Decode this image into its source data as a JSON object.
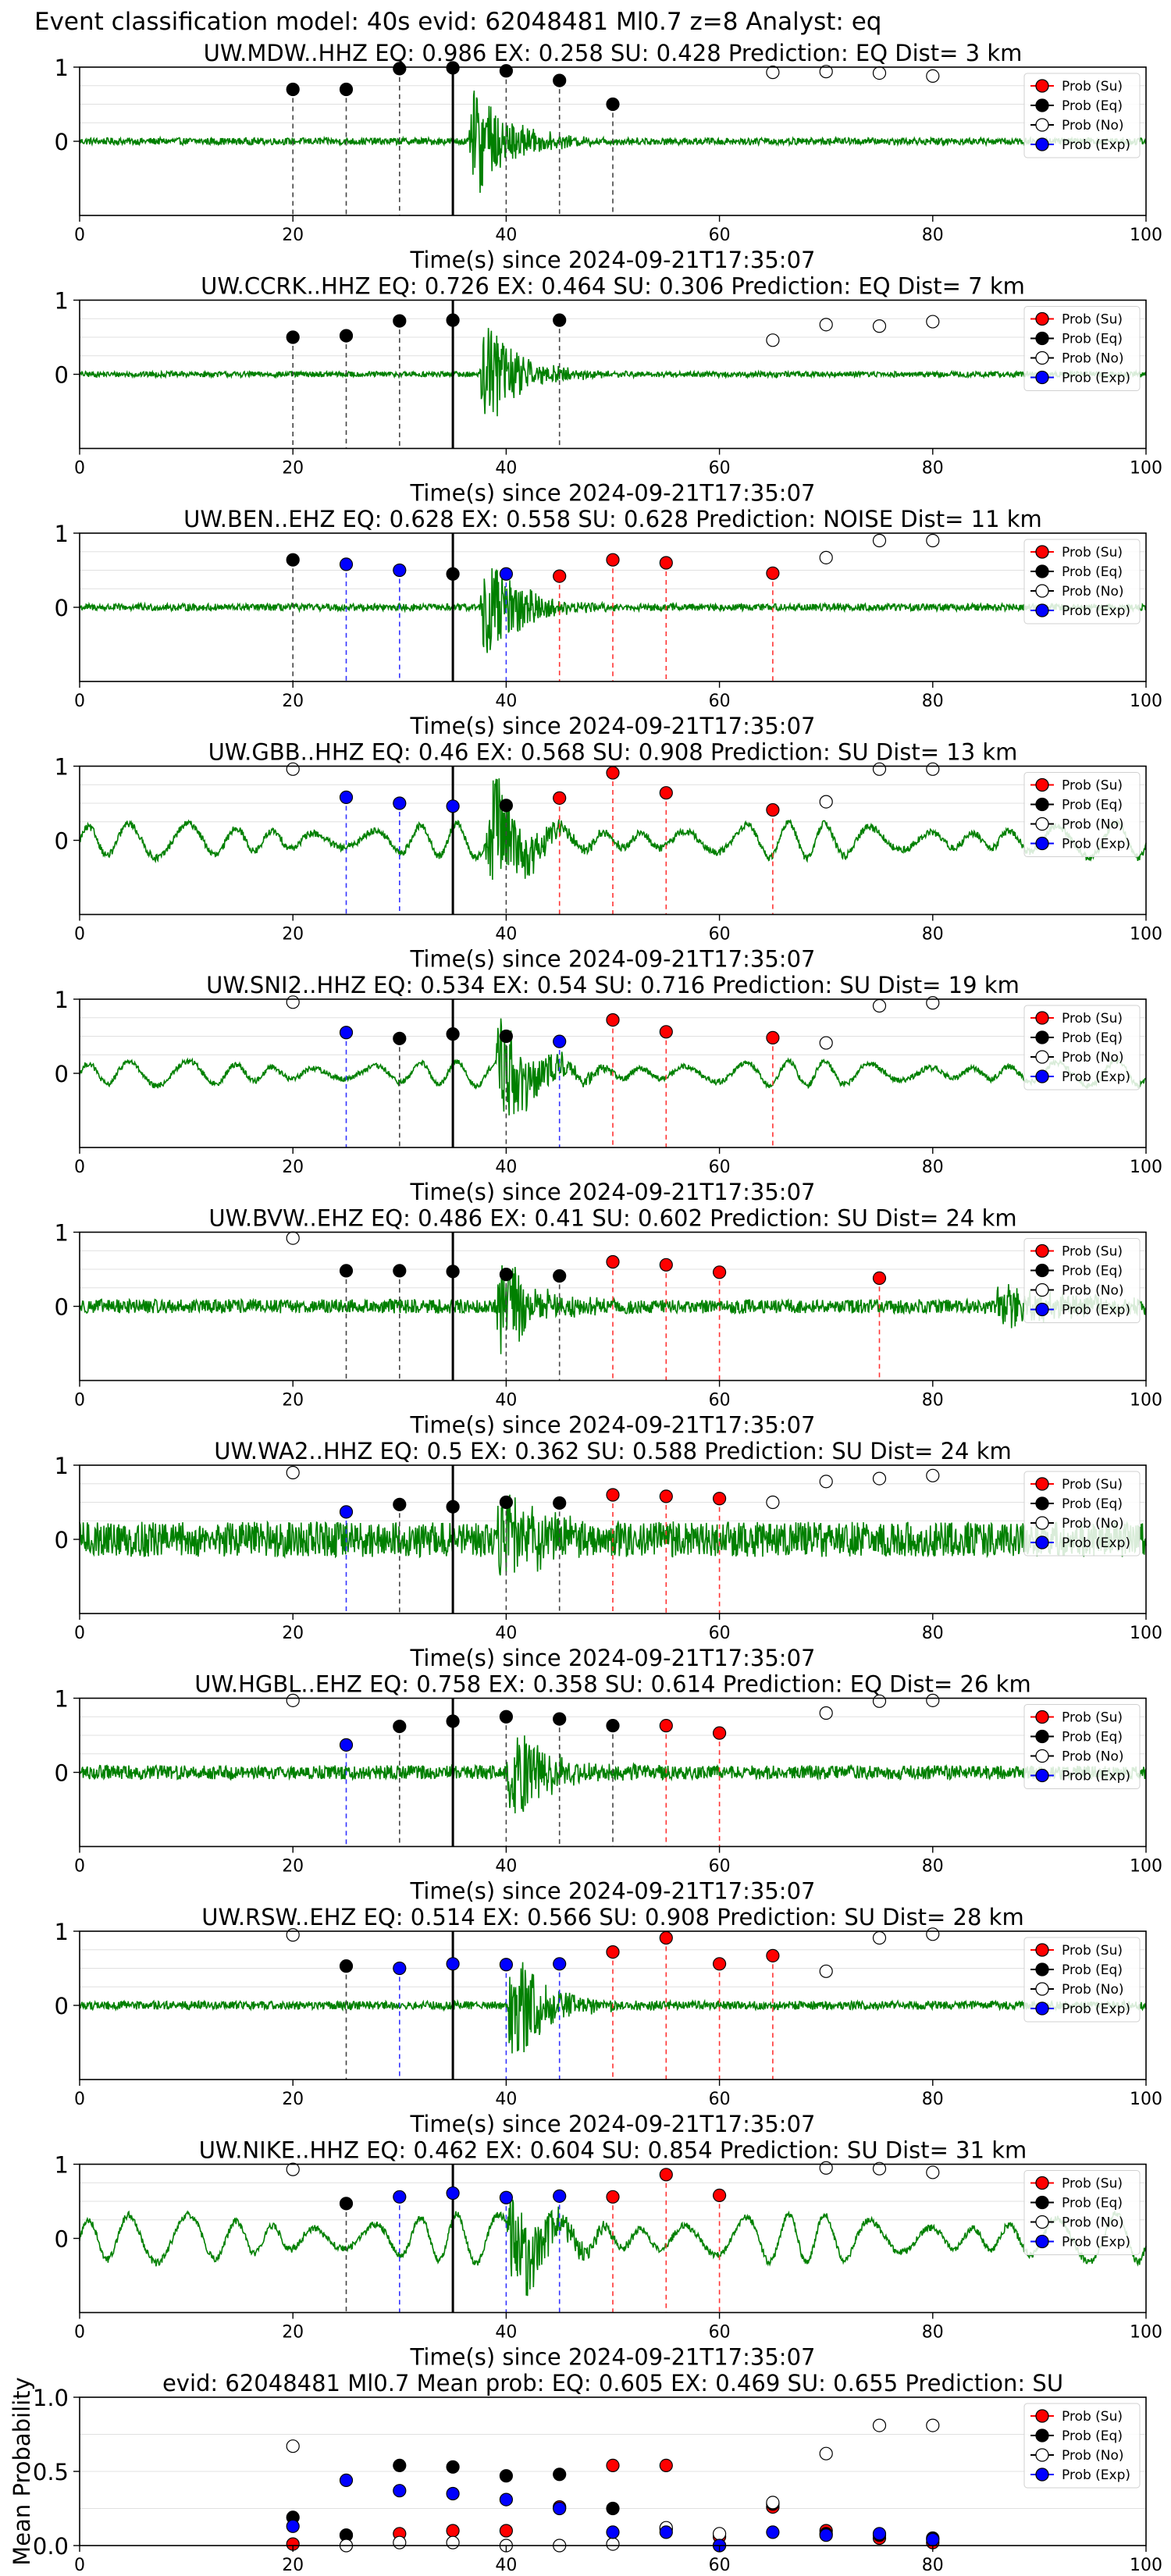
{
  "suptitle": "Event classification model: 40s evid: 62048481 Ml0.7 z=8 Analyst: eq",
  "legend_labels": [
    "Prob (Su)",
    "Prob (Eq)",
    "Prob (No)",
    "Prob (Exp)"
  ],
  "colors": {
    "su": "#ff0000",
    "eq": "#000000",
    "no": "#ffffff",
    "exp": "#0000ff",
    "trace": "#008000",
    "grid": "#cccccc"
  },
  "chart_data": [
    {
      "type": "line",
      "title": "UW.MDW..HHZ   EQ: 0.986  EX: 0.258  SU: 0.428   Prediction: EQ    Dist= 3 km",
      "xlabel": "Time(s) since 2024-09-21T17:35:07",
      "xlim": [
        0,
        100
      ],
      "ylim": [
        -1,
        1
      ],
      "xticks": [
        "0",
        "20",
        "40",
        "60",
        "80",
        "100"
      ],
      "yticks": [
        "1",
        "0"
      ],
      "p_arrival": 35,
      "trace": {
        "onset": 36.5,
        "peak_amp": 1.0,
        "noise": 0.05,
        "osc": 0,
        "coda": 0
      },
      "points": [
        {
          "x": 20,
          "y": 0.7,
          "class": "eq"
        },
        {
          "x": 25,
          "y": 0.7,
          "class": "eq"
        },
        {
          "x": 30,
          "y": 0.98,
          "class": "eq"
        },
        {
          "x": 35,
          "y": 0.99,
          "class": "eq"
        },
        {
          "x": 40,
          "y": 0.95,
          "class": "eq"
        },
        {
          "x": 45,
          "y": 0.82,
          "class": "eq"
        },
        {
          "x": 50,
          "y": 0.5,
          "class": "eq"
        },
        {
          "x": 65,
          "y": 0.93,
          "class": "no"
        },
        {
          "x": 70,
          "y": 0.94,
          "class": "no"
        },
        {
          "x": 75,
          "y": 0.92,
          "class": "no"
        },
        {
          "x": 80,
          "y": 0.88,
          "class": "no"
        }
      ]
    },
    {
      "type": "line",
      "title": "UW.CCRK..HHZ   EQ: 0.726  EX: 0.464  SU: 0.306   Prediction: EQ    Dist= 7 km",
      "xlabel": "Time(s) since 2024-09-21T17:35:07",
      "xlim": [
        0,
        100
      ],
      "ylim": [
        -1,
        1
      ],
      "xticks": [
        "0",
        "20",
        "40",
        "60",
        "80",
        "100"
      ],
      "yticks": [
        "1",
        "0"
      ],
      "p_arrival": 35,
      "trace": {
        "onset": 37.5,
        "peak_amp": 0.95,
        "noise": 0.04,
        "osc": 0,
        "coda": 0
      },
      "points": [
        {
          "x": 20,
          "y": 0.5,
          "class": "eq"
        },
        {
          "x": 25,
          "y": 0.52,
          "class": "eq"
        },
        {
          "x": 30,
          "y": 0.72,
          "class": "eq"
        },
        {
          "x": 35,
          "y": 0.73,
          "class": "eq"
        },
        {
          "x": 45,
          "y": 0.73,
          "class": "eq"
        },
        {
          "x": 65,
          "y": 0.46,
          "class": "no"
        },
        {
          "x": 70,
          "y": 0.67,
          "class": "no"
        },
        {
          "x": 75,
          "y": 0.65,
          "class": "no"
        },
        {
          "x": 80,
          "y": 0.71,
          "class": "no"
        }
      ]
    },
    {
      "type": "line",
      "title": "UW.BEN..EHZ   EQ: 0.628  EX: 0.558  SU: 0.628   Prediction: NOISE    Dist= 11 km",
      "xlabel": "Time(s) since 2024-09-21T17:35:07",
      "xlim": [
        0,
        100
      ],
      "ylim": [
        -1,
        1
      ],
      "xticks": [
        "0",
        "20",
        "40",
        "60",
        "80",
        "100"
      ],
      "yticks": [
        "1",
        "0"
      ],
      "p_arrival": 35,
      "trace": {
        "onset": 37.5,
        "peak_amp": 0.95,
        "noise": 0.05,
        "osc": 0,
        "coda": 0
      },
      "points": [
        {
          "x": 20,
          "y": 0.64,
          "class": "eq"
        },
        {
          "x": 35,
          "y": 0.45,
          "class": "eq"
        },
        {
          "x": 25,
          "y": 0.58,
          "class": "exp"
        },
        {
          "x": 30,
          "y": 0.5,
          "class": "exp"
        },
        {
          "x": 40,
          "y": 0.45,
          "class": "exp"
        },
        {
          "x": 45,
          "y": 0.42,
          "class": "su"
        },
        {
          "x": 50,
          "y": 0.64,
          "class": "su"
        },
        {
          "x": 55,
          "y": 0.6,
          "class": "su"
        },
        {
          "x": 65,
          "y": 0.46,
          "class": "su"
        },
        {
          "x": 70,
          "y": 0.67,
          "class": "no"
        },
        {
          "x": 75,
          "y": 0.9,
          "class": "no"
        },
        {
          "x": 80,
          "y": 0.9,
          "class": "no"
        }
      ]
    },
    {
      "type": "line",
      "title": "UW.GBB..HHZ   EQ: 0.46  EX: 0.568  SU: 0.908   Prediction: SU    Dist= 13 km",
      "xlabel": "Time(s) since 2024-09-21T17:35:07",
      "xlim": [
        0,
        100
      ],
      "ylim": [
        -1,
        1
      ],
      "xticks": [
        "0",
        "20",
        "40",
        "60",
        "80",
        "100"
      ],
      "yticks": [
        "1",
        "0"
      ],
      "p_arrival": 35,
      "trace": {
        "onset": 38,
        "peak_amp": 1.0,
        "noise": 0.05,
        "osc": 0.25,
        "coda": 0
      },
      "points": [
        {
          "x": 20,
          "y": 0.96,
          "class": "no"
        },
        {
          "x": 25,
          "y": 0.58,
          "class": "exp"
        },
        {
          "x": 30,
          "y": 0.5,
          "class": "exp"
        },
        {
          "x": 35,
          "y": 0.46,
          "class": "exp"
        },
        {
          "x": 40,
          "y": 0.47,
          "class": "eq"
        },
        {
          "x": 45,
          "y": 0.57,
          "class": "su"
        },
        {
          "x": 50,
          "y": 0.91,
          "class": "su"
        },
        {
          "x": 55,
          "y": 0.64,
          "class": "su"
        },
        {
          "x": 65,
          "y": 0.41,
          "class": "su"
        },
        {
          "x": 70,
          "y": 0.52,
          "class": "no"
        },
        {
          "x": 75,
          "y": 0.96,
          "class": "no"
        },
        {
          "x": 80,
          "y": 0.96,
          "class": "no"
        }
      ]
    },
    {
      "type": "line",
      "title": "UW.SNI2..HHZ   EQ: 0.534  EX: 0.54  SU: 0.716   Prediction: SU    Dist= 19 km",
      "xlabel": "Time(s) since 2024-09-21T17:35:07",
      "xlim": [
        0,
        100
      ],
      "ylim": [
        -1,
        1
      ],
      "xticks": [
        "0",
        "20",
        "40",
        "60",
        "80",
        "100"
      ],
      "yticks": [
        "1",
        "0"
      ],
      "p_arrival": 35,
      "trace": {
        "onset": 39,
        "peak_amp": 1.0,
        "noise": 0.04,
        "osc": 0.18,
        "coda": 0
      },
      "points": [
        {
          "x": 20,
          "y": 0.96,
          "class": "no"
        },
        {
          "x": 25,
          "y": 0.55,
          "class": "exp"
        },
        {
          "x": 30,
          "y": 0.47,
          "class": "eq"
        },
        {
          "x": 35,
          "y": 0.53,
          "class": "eq"
        },
        {
          "x": 40,
          "y": 0.5,
          "class": "eq"
        },
        {
          "x": 45,
          "y": 0.43,
          "class": "exp"
        },
        {
          "x": 50,
          "y": 0.72,
          "class": "su"
        },
        {
          "x": 55,
          "y": 0.56,
          "class": "su"
        },
        {
          "x": 65,
          "y": 0.48,
          "class": "su"
        },
        {
          "x": 70,
          "y": 0.41,
          "class": "no"
        },
        {
          "x": 75,
          "y": 0.91,
          "class": "no"
        },
        {
          "x": 80,
          "y": 0.95,
          "class": "no"
        }
      ]
    },
    {
      "type": "line",
      "title": "UW.BVW..EHZ   EQ: 0.486  EX: 0.41  SU: 0.602   Prediction: SU    Dist= 24 km",
      "xlabel": "Time(s) since 2024-09-21T17:35:07",
      "xlim": [
        0,
        100
      ],
      "ylim": [
        -1,
        1
      ],
      "xticks": [
        "0",
        "20",
        "40",
        "60",
        "80",
        "100"
      ],
      "yticks": [
        "1",
        "0"
      ],
      "p_arrival": 35,
      "trace": {
        "onset": 39,
        "peak_amp": 0.9,
        "noise": 0.1,
        "osc": 0,
        "coda": 0.3
      },
      "points": [
        {
          "x": 20,
          "y": 0.92,
          "class": "no"
        },
        {
          "x": 25,
          "y": 0.48,
          "class": "eq"
        },
        {
          "x": 30,
          "y": 0.48,
          "class": "eq"
        },
        {
          "x": 35,
          "y": 0.47,
          "class": "eq"
        },
        {
          "x": 40,
          "y": 0.43,
          "class": "eq"
        },
        {
          "x": 45,
          "y": 0.41,
          "class": "eq"
        },
        {
          "x": 50,
          "y": 0.6,
          "class": "su"
        },
        {
          "x": 55,
          "y": 0.56,
          "class": "su"
        },
        {
          "x": 60,
          "y": 0.46,
          "class": "su"
        },
        {
          "x": 75,
          "y": 0.38,
          "class": "su"
        }
      ]
    },
    {
      "type": "line",
      "title": "UW.WA2..HHZ   EQ: 0.5  EX: 0.362  SU: 0.588   Prediction: SU    Dist= 24 km",
      "xlabel": "Time(s) since 2024-09-21T17:35:07",
      "xlim": [
        0,
        100
      ],
      "ylim": [
        -1,
        1
      ],
      "xticks": [
        "0",
        "20",
        "40",
        "60",
        "80",
        "100"
      ],
      "yticks": [
        "1",
        "0"
      ],
      "p_arrival": 35,
      "trace": {
        "onset": 39,
        "peak_amp": 1.0,
        "noise": 0.25,
        "osc": 0,
        "coda": 0
      },
      "points": [
        {
          "x": 20,
          "y": 0.9,
          "class": "no"
        },
        {
          "x": 25,
          "y": 0.37,
          "class": "exp"
        },
        {
          "x": 30,
          "y": 0.47,
          "class": "eq"
        },
        {
          "x": 35,
          "y": 0.44,
          "class": "eq"
        },
        {
          "x": 40,
          "y": 0.5,
          "class": "eq"
        },
        {
          "x": 45,
          "y": 0.49,
          "class": "eq"
        },
        {
          "x": 50,
          "y": 0.6,
          "class": "su"
        },
        {
          "x": 55,
          "y": 0.58,
          "class": "su"
        },
        {
          "x": 60,
          "y": 0.55,
          "class": "su"
        },
        {
          "x": 65,
          "y": 0.5,
          "class": "no"
        },
        {
          "x": 70,
          "y": 0.78,
          "class": "no"
        },
        {
          "x": 75,
          "y": 0.82,
          "class": "no"
        },
        {
          "x": 80,
          "y": 0.86,
          "class": "no"
        }
      ]
    },
    {
      "type": "line",
      "title": "UW.HGBL..EHZ   EQ: 0.758  EX: 0.358  SU: 0.614   Prediction: EQ    Dist= 26 km",
      "xlabel": "Time(s) since 2024-09-21T17:35:07",
      "xlim": [
        0,
        100
      ],
      "ylim": [
        -1,
        1
      ],
      "xticks": [
        "0",
        "20",
        "40",
        "60",
        "80",
        "100"
      ],
      "yticks": [
        "1",
        "0"
      ],
      "p_arrival": 35,
      "trace": {
        "onset": 40,
        "peak_amp": 0.85,
        "noise": 0.1,
        "osc": 0,
        "coda": 0
      },
      "points": [
        {
          "x": 20,
          "y": 0.97,
          "class": "no"
        },
        {
          "x": 25,
          "y": 0.37,
          "class": "exp"
        },
        {
          "x": 30,
          "y": 0.62,
          "class": "eq"
        },
        {
          "x": 35,
          "y": 0.69,
          "class": "eq"
        },
        {
          "x": 40,
          "y": 0.75,
          "class": "eq"
        },
        {
          "x": 45,
          "y": 0.72,
          "class": "eq"
        },
        {
          "x": 50,
          "y": 0.63,
          "class": "eq"
        },
        {
          "x": 55,
          "y": 0.63,
          "class": "su"
        },
        {
          "x": 60,
          "y": 0.53,
          "class": "su"
        },
        {
          "x": 70,
          "y": 0.8,
          "class": "no"
        },
        {
          "x": 75,
          "y": 0.96,
          "class": "no"
        },
        {
          "x": 80,
          "y": 0.97,
          "class": "no"
        }
      ]
    },
    {
      "type": "line",
      "title": "UW.RSW..EHZ   EQ: 0.514  EX: 0.566  SU: 0.908   Prediction: SU    Dist= 28 km",
      "xlabel": "Time(s) since 2024-09-21T17:35:07",
      "xlim": [
        0,
        100
      ],
      "ylim": [
        -1,
        1
      ],
      "xticks": [
        "0",
        "20",
        "40",
        "60",
        "80",
        "100"
      ],
      "yticks": [
        "1",
        "0"
      ],
      "p_arrival": 35,
      "trace": {
        "onset": 40,
        "peak_amp": 1.0,
        "noise": 0.06,
        "osc": 0,
        "coda": 0
      },
      "points": [
        {
          "x": 20,
          "y": 0.95,
          "class": "no"
        },
        {
          "x": 25,
          "y": 0.53,
          "class": "eq"
        },
        {
          "x": 30,
          "y": 0.5,
          "class": "exp"
        },
        {
          "x": 35,
          "y": 0.56,
          "class": "exp"
        },
        {
          "x": 40,
          "y": 0.55,
          "class": "exp"
        },
        {
          "x": 45,
          "y": 0.56,
          "class": "exp"
        },
        {
          "x": 50,
          "y": 0.72,
          "class": "su"
        },
        {
          "x": 55,
          "y": 0.91,
          "class": "su"
        },
        {
          "x": 60,
          "y": 0.56,
          "class": "su"
        },
        {
          "x": 65,
          "y": 0.67,
          "class": "su"
        },
        {
          "x": 70,
          "y": 0.46,
          "class": "no"
        },
        {
          "x": 75,
          "y": 0.91,
          "class": "no"
        },
        {
          "x": 80,
          "y": 0.96,
          "class": "no"
        }
      ]
    },
    {
      "type": "line",
      "title": "UW.NIKE..HHZ   EQ: 0.462  EX: 0.604  SU: 0.854   Prediction: SU    Dist= 31 km",
      "xlabel": "Time(s) since 2024-09-21T17:35:07",
      "xlim": [
        0,
        100
      ],
      "ylim": [
        -1,
        1
      ],
      "xticks": [
        "0",
        "20",
        "40",
        "60",
        "80",
        "100"
      ],
      "yticks": [
        "1",
        "0"
      ],
      "p_arrival": 35,
      "trace": {
        "onset": 40,
        "peak_amp": 1.0,
        "noise": 0.05,
        "osc": 0.35,
        "coda": 0
      },
      "points": [
        {
          "x": 20,
          "y": 0.93,
          "class": "no"
        },
        {
          "x": 25,
          "y": 0.47,
          "class": "eq"
        },
        {
          "x": 30,
          "y": 0.56,
          "class": "exp"
        },
        {
          "x": 35,
          "y": 0.61,
          "class": "exp"
        },
        {
          "x": 40,
          "y": 0.55,
          "class": "exp"
        },
        {
          "x": 45,
          "y": 0.57,
          "class": "exp"
        },
        {
          "x": 50,
          "y": 0.56,
          "class": "su"
        },
        {
          "x": 55,
          "y": 0.86,
          "class": "su"
        },
        {
          "x": 60,
          "y": 0.58,
          "class": "su"
        },
        {
          "x": 70,
          "y": 0.95,
          "class": "no"
        },
        {
          "x": 75,
          "y": 0.94,
          "class": "no"
        },
        {
          "x": 80,
          "y": 0.89,
          "class": "no"
        }
      ]
    },
    {
      "type": "scatter",
      "title": "evid: 62048481  Ml0.7   Mean prob:   EQ: 0.605  EX: 0.469  SU: 0.655   Prediction: SU",
      "ylabel": "Mean Probability",
      "xlim": [
        0,
        100
      ],
      "ylim": [
        0,
        1
      ],
      "xticks": [
        "0",
        "20",
        "40",
        "60",
        "80",
        "100"
      ],
      "yticks": [
        "1.0",
        "0.5",
        "0.0"
      ],
      "series": [
        {
          "name": "Prob (Su)",
          "class": "su",
          "x": [
            20,
            25,
            30,
            35,
            40,
            45,
            50,
            55,
            60,
            65,
            70,
            75,
            80
          ],
          "y": [
            0.01,
            0.07,
            0.08,
            0.1,
            0.1,
            0.26,
            0.54,
            0.54,
            0.06,
            0.26,
            0.1,
            0.05,
            0.02
          ]
        },
        {
          "name": "Prob (Eq)",
          "class": "eq",
          "x": [
            20,
            25,
            30,
            35,
            40,
            45,
            50,
            55,
            60,
            65,
            70,
            75,
            80
          ],
          "y": [
            0.19,
            0.07,
            0.54,
            0.53,
            0.47,
            0.48,
            0.25,
            0.11,
            0.0,
            0.28,
            0.08,
            0.07,
            0.05
          ]
        },
        {
          "name": "Prob (No)",
          "class": "no",
          "x": [
            20,
            25,
            30,
            35,
            40,
            45,
            50,
            55,
            60,
            65,
            70,
            75,
            80
          ],
          "y": [
            0.67,
            0.0,
            0.02,
            0.02,
            0.0,
            0.0,
            0.01,
            0.12,
            0.08,
            0.29,
            0.62,
            0.81,
            0.81
          ]
        },
        {
          "name": "Prob (Exp)",
          "class": "exp",
          "x": [
            20,
            25,
            30,
            35,
            40,
            45,
            50,
            55,
            60,
            65,
            70,
            75,
            80
          ],
          "y": [
            0.13,
            0.44,
            0.37,
            0.35,
            0.31,
            0.25,
            0.09,
            0.09,
            0.0,
            0.09,
            0.07,
            0.08,
            0.04
          ]
        }
      ]
    }
  ]
}
